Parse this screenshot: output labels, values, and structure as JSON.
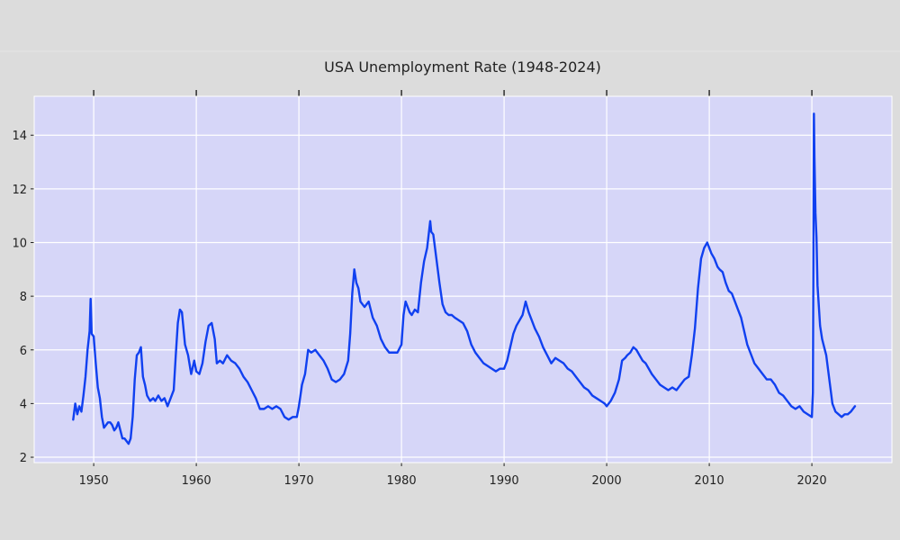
{
  "chart_data": {
    "type": "line",
    "title": "USA Unemployment Rate (1948-2024)",
    "xlabel": "",
    "ylabel": "",
    "xlim": [
      1944.2,
      2027.8
    ],
    "ylim": [
      1.8,
      15.45
    ],
    "xticks": [
      1950,
      1960,
      1970,
      1980,
      1990,
      2000,
      2010,
      2020
    ],
    "yticks": [
      2,
      4,
      6,
      8,
      10,
      12,
      14
    ],
    "grid": true,
    "legend": "none",
    "colors": {
      "page": "#dcdcdc",
      "plot_background": "#d6d6f8",
      "grid": "#ffffff",
      "line": "#1040f0",
      "text": "#222222"
    },
    "series": [
      {
        "x": [
          1948.0,
          1948.2,
          1948.4,
          1948.6,
          1948.8,
          1949.0,
          1949.2,
          1949.4,
          1949.6,
          1949.7,
          1949.8,
          1950.0,
          1950.2,
          1950.4,
          1950.6,
          1950.8,
          1951.0,
          1951.2,
          1951.4,
          1951.6,
          1951.8,
          1952.0,
          1952.2,
          1952.4,
          1952.6,
          1952.8,
          1953.0,
          1953.2,
          1953.4,
          1953.6,
          1953.8,
          1954.0,
          1954.2,
          1954.4,
          1954.6,
          1954.8,
          1955.0,
          1955.2,
          1955.5,
          1955.8,
          1956.0,
          1956.3,
          1956.6,
          1956.9,
          1957.2,
          1957.5,
          1957.8,
          1958.0,
          1958.2,
          1958.4,
          1958.6,
          1958.9,
          1959.2,
          1959.5,
          1959.8,
          1960.0,
          1960.3,
          1960.6,
          1960.9,
          1961.2,
          1961.5,
          1961.8,
          1962.0,
          1962.3,
          1962.6,
          1963.0,
          1963.4,
          1963.8,
          1964.2,
          1964.6,
          1965.0,
          1965.4,
          1965.8,
          1966.2,
          1966.6,
          1967.0,
          1967.4,
          1967.8,
          1968.2,
          1968.6,
          1969.0,
          1969.4,
          1969.8,
          1970.0,
          1970.3,
          1970.6,
          1970.9,
          1971.2,
          1971.6,
          1972.0,
          1972.4,
          1972.8,
          1973.2,
          1973.6,
          1974.0,
          1974.4,
          1974.8,
          1975.0,
          1975.2,
          1975.4,
          1975.6,
          1975.8,
          1976.0,
          1976.4,
          1976.8,
          1977.2,
          1977.6,
          1978.0,
          1978.4,
          1978.8,
          1979.2,
          1979.6,
          1980.0,
          1980.2,
          1980.4,
          1980.6,
          1980.8,
          1981.0,
          1981.3,
          1981.6,
          1981.9,
          1982.2,
          1982.5,
          1982.8,
          1982.9,
          1983.1,
          1983.4,
          1983.7,
          1984.0,
          1984.3,
          1984.6,
          1984.9,
          1985.2,
          1985.6,
          1986.0,
          1986.4,
          1986.8,
          1987.2,
          1987.6,
          1988.0,
          1988.4,
          1988.8,
          1989.2,
          1989.6,
          1990.0,
          1990.3,
          1990.6,
          1990.9,
          1991.2,
          1991.5,
          1991.8,
          1992.1,
          1992.4,
          1992.7,
          1993.0,
          1993.4,
          1993.8,
          1994.2,
          1994.6,
          1995.0,
          1995.4,
          1995.8,
          1996.2,
          1996.6,
          1997.0,
          1997.4,
          1997.8,
          1998.2,
          1998.6,
          1999.0,
          1999.4,
          1999.8,
          2000.0,
          2000.4,
          2000.8,
          2001.2,
          2001.5,
          2001.8,
          2002.0,
          2002.3,
          2002.6,
          2002.9,
          2003.2,
          2003.5,
          2003.8,
          2004.1,
          2004.4,
          2004.8,
          2005.2,
          2005.6,
          2006.0,
          2006.4,
          2006.8,
          2007.2,
          2007.6,
          2008.0,
          2008.3,
          2008.6,
          2008.9,
          2009.2,
          2009.5,
          2009.8,
          2010.0,
          2010.2,
          2010.5,
          2010.8,
          2011.0,
          2011.3,
          2011.6,
          2011.9,
          2012.2,
          2012.5,
          2012.8,
          2013.1,
          2013.4,
          2013.7,
          2014.0,
          2014.4,
          2014.8,
          2015.2,
          2015.6,
          2016.0,
          2016.4,
          2016.8,
          2017.2,
          2017.6,
          2018.0,
          2018.4,
          2018.8,
          2019.2,
          2019.6,
          2020.0,
          2020.1,
          2020.2,
          2020.25,
          2020.35,
          2020.45,
          2020.55,
          2020.65,
          2020.8,
          2021.0,
          2021.2,
          2021.4,
          2021.6,
          2021.8,
          2022.0,
          2022.3,
          2022.6,
          2022.9,
          2023.2,
          2023.5,
          2023.8,
          2024.0,
          2024.2
        ],
        "values": [
          3.4,
          4.0,
          3.6,
          3.9,
          3.7,
          4.3,
          5.0,
          6.0,
          6.7,
          7.9,
          6.6,
          6.5,
          5.5,
          4.6,
          4.2,
          3.5,
          3.1,
          3.2,
          3.3,
          3.3,
          3.2,
          3.0,
          3.1,
          3.3,
          3.0,
          2.7,
          2.7,
          2.6,
          2.5,
          2.7,
          3.5,
          4.9,
          5.8,
          5.9,
          6.1,
          5.0,
          4.7,
          4.3,
          4.1,
          4.2,
          4.1,
          4.3,
          4.1,
          4.2,
          3.9,
          4.2,
          4.5,
          5.8,
          7.0,
          7.5,
          7.4,
          6.2,
          5.8,
          5.1,
          5.6,
          5.2,
          5.1,
          5.5,
          6.3,
          6.9,
          7.0,
          6.4,
          5.5,
          5.6,
          5.5,
          5.8,
          5.6,
          5.5,
          5.3,
          5.0,
          4.8,
          4.5,
          4.2,
          3.8,
          3.8,
          3.9,
          3.8,
          3.9,
          3.8,
          3.5,
          3.4,
          3.5,
          3.5,
          3.9,
          4.7,
          5.1,
          6.0,
          5.9,
          6.0,
          5.8,
          5.6,
          5.3,
          4.9,
          4.8,
          4.9,
          5.1,
          5.6,
          6.6,
          8.1,
          9.0,
          8.5,
          8.3,
          7.8,
          7.6,
          7.8,
          7.2,
          6.9,
          6.4,
          6.1,
          5.9,
          5.9,
          5.9,
          6.2,
          7.3,
          7.8,
          7.6,
          7.4,
          7.3,
          7.5,
          7.4,
          8.5,
          9.3,
          9.8,
          10.8,
          10.4,
          10.3,
          9.4,
          8.5,
          7.7,
          7.4,
          7.3,
          7.3,
          7.2,
          7.1,
          7.0,
          6.7,
          6.2,
          5.9,
          5.7,
          5.5,
          5.4,
          5.3,
          5.2,
          5.3,
          5.3,
          5.6,
          6.1,
          6.6,
          6.9,
          7.1,
          7.3,
          7.8,
          7.4,
          7.1,
          6.8,
          6.5,
          6.1,
          5.8,
          5.5,
          5.7,
          5.6,
          5.5,
          5.3,
          5.2,
          5.0,
          4.8,
          4.6,
          4.5,
          4.3,
          4.2,
          4.1,
          4.0,
          3.9,
          4.1,
          4.4,
          4.9,
          5.6,
          5.7,
          5.8,
          5.9,
          6.1,
          6.0,
          5.8,
          5.6,
          5.5,
          5.3,
          5.1,
          4.9,
          4.7,
          4.6,
          4.5,
          4.6,
          4.5,
          4.7,
          4.9,
          5.0,
          5.8,
          6.8,
          8.3,
          9.4,
          9.8,
          10.0,
          9.8,
          9.6,
          9.4,
          9.1,
          9.0,
          8.9,
          8.5,
          8.2,
          8.1,
          7.8,
          7.5,
          7.2,
          6.7,
          6.2,
          5.9,
          5.5,
          5.3,
          5.1,
          4.9,
          4.9,
          4.7,
          4.4,
          4.3,
          4.1,
          3.9,
          3.8,
          3.9,
          3.7,
          3.6,
          3.5,
          4.4,
          14.8,
          13.2,
          11.1,
          10.2,
          8.4,
          7.8,
          6.9,
          6.4,
          6.1,
          5.8,
          5.2,
          4.6,
          4.0,
          3.7,
          3.6,
          3.5,
          3.6,
          3.6,
          3.7,
          3.8,
          3.9
        ]
      }
    ]
  }
}
